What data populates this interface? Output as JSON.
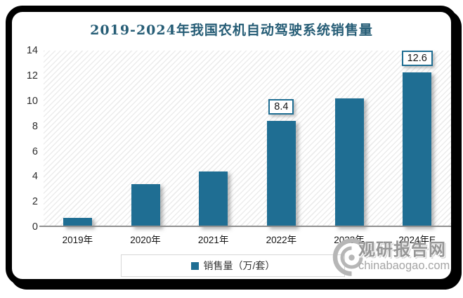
{
  "chart_data": {
    "type": "bar",
    "title": "2019-2024年我国农机自动驾驶系统销售量",
    "categories": [
      "2019年",
      "2020年",
      "2021年",
      "2022年",
      "2023年",
      "2024年E"
    ],
    "values": [
      0.7,
      3.4,
      4.4,
      8.4,
      10.2,
      12.6
    ],
    "point_labels": [
      "",
      "",
      "",
      "8.4",
      "",
      "12.6"
    ],
    "yticks": [
      "14",
      "12",
      "10",
      "8",
      "6",
      "4",
      "2",
      "0"
    ],
    "ylim": [
      0,
      14
    ],
    "xlabel": "",
    "ylabel": "",
    "grid": false,
    "legend": [
      "销售量（万/套）"
    ],
    "legend_position": "bottom-center",
    "bar_color": "#1F6E93",
    "title_color": "#265D76",
    "plot_background": "white-diagonal-hatch"
  },
  "legend": {
    "label": "销售量（万/套）"
  },
  "watermark": {
    "name": "观研报告网",
    "domain": "chinabaogao.com"
  }
}
